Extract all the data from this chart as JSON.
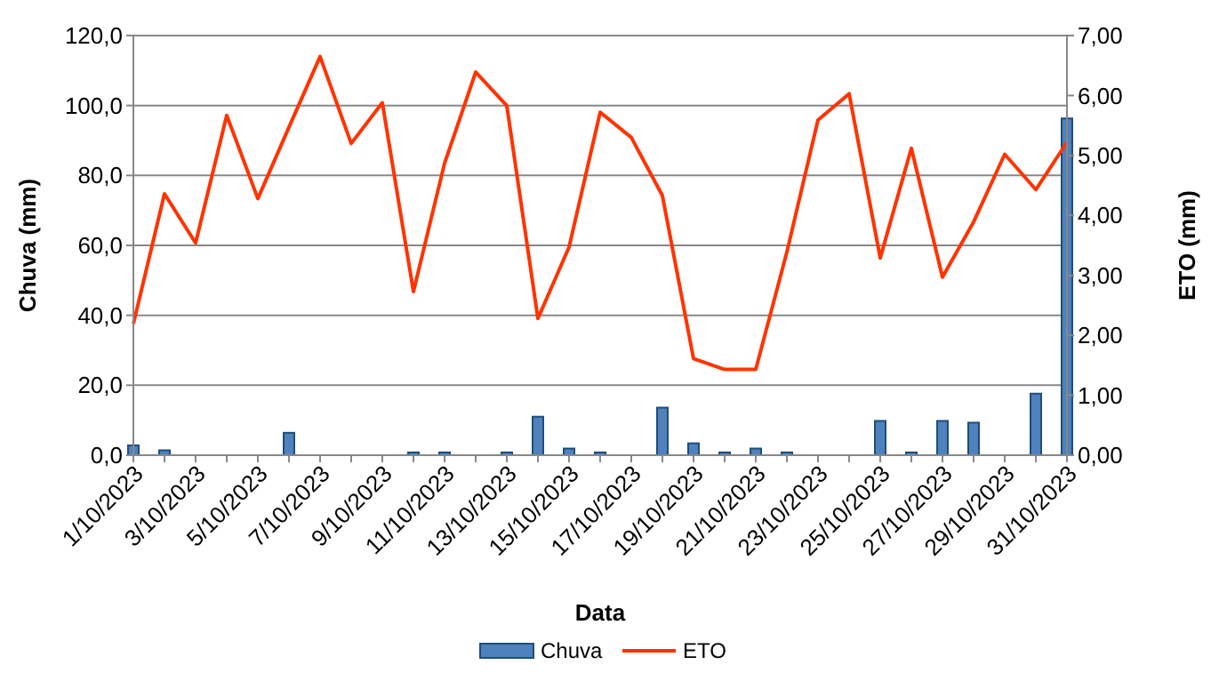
{
  "chart_data": {
    "type": "bar",
    "xlabel": "Data",
    "ylabel": "Chuva (mm)",
    "y2label": "ETO (mm)",
    "categories": [
      "1/10/2023",
      null,
      "3/10/2023",
      null,
      "5/10/2023",
      null,
      "7/10/2023",
      null,
      "9/10/2023",
      null,
      "11/10/2023",
      null,
      "13/10/2023",
      null,
      "15/10/2023",
      null,
      "17/10/2023",
      null,
      "19/10/2023",
      null,
      "21/10/2023",
      null,
      "23/10/2023",
      null,
      "25/10/2023",
      null,
      "27/10/2023",
      null,
      "29/10/2023",
      null,
      "31/10/2023"
    ],
    "series": [
      {
        "name": "Chuva",
        "color": "#4f81bd",
        "values": [
          2.8,
          1.4,
          0,
          0,
          0,
          6.4,
          0,
          0,
          0,
          0.8,
          0.8,
          0,
          0.8,
          11,
          1.9,
          0.8,
          0,
          13.6,
          3.4,
          0.8,
          1.9,
          0.8,
          0,
          0,
          9.8,
          0.8,
          9.8,
          9.3,
          0,
          17.6,
          96.3
        ]
      },
      {
        "name": "ETO",
        "type": "line",
        "axis": "y2",
        "color": "#ff3300",
        "values": [
          2.19,
          4.36,
          3.54,
          5.67,
          4.28,
          5.47,
          6.65,
          5.2,
          5.88,
          2.73,
          4.87,
          6.39,
          5.83,
          2.28,
          3.47,
          5.72,
          5.3,
          4.33,
          1.61,
          1.43,
          1.43,
          3.39,
          5.59,
          6.03,
          3.29,
          5.12,
          2.97,
          3.89,
          5.02,
          4.43,
          5.22
        ]
      }
    ],
    "ylim": [
      0,
      120
    ],
    "yticks": [
      {
        "value": 0,
        "label": "0,0"
      },
      {
        "value": 20,
        "label": "20,0"
      },
      {
        "value": 40,
        "label": "40,0"
      },
      {
        "value": 60,
        "label": "60,0"
      },
      {
        "value": 80,
        "label": "80,0"
      },
      {
        "value": 100,
        "label": "100,0"
      },
      {
        "value": 120,
        "label": "120,0"
      }
    ],
    "y2lim": [
      0,
      7
    ],
    "y2ticks": [
      {
        "value": 0,
        "label": "0,00"
      },
      {
        "value": 1,
        "label": "1,00"
      },
      {
        "value": 2,
        "label": "2,00"
      },
      {
        "value": 3,
        "label": "3,00"
      },
      {
        "value": 4,
        "label": "4,00"
      },
      {
        "value": 5,
        "label": "5,00"
      },
      {
        "value": 6,
        "label": "6,00"
      },
      {
        "value": 7,
        "label": "7,00"
      }
    ],
    "grid": "y",
    "legend": "bottom"
  }
}
